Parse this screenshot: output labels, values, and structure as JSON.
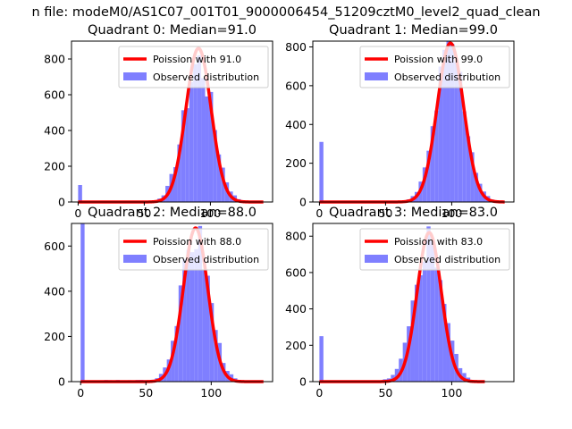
{
  "figure_title": "n file: modeM0/AS1C07_001T01_9000006454_51209cztM0_level2_quad_clean",
  "colors": {
    "poisson": "#ff0000",
    "hist": "#7f7fff",
    "axis": "#000000"
  },
  "chart_data": [
    {
      "type": "bar",
      "title": "Quadrant 0: Median=91.0",
      "median": 91.0,
      "xlim": [
        -5,
        147
      ],
      "ylim": [
        0,
        900
      ],
      "xticks": [
        0,
        50,
        100
      ],
      "yticks": [
        0,
        200,
        400,
        600,
        800
      ],
      "legend": {
        "placement": "top-right",
        "entries": [
          "Poission with 91.0",
          "Observed distribution"
        ]
      },
      "hist_bins": {
        "start": 0,
        "width": 3
      },
      "hist_values": [
        95,
        0,
        0,
        0,
        0,
        0,
        0,
        0,
        0,
        0,
        0,
        0,
        0,
        0,
        0,
        0,
        0,
        0,
        0,
        0,
        0,
        0,
        0,
        0,
        0,
        0,
        0,
        5,
        10,
        15,
        20,
        35,
        45,
        60,
        80,
        110,
        140,
        160,
        200,
        230,
        290,
        330,
        380,
        440,
        500,
        560,
        600,
        680,
        720,
        760,
        810,
        790,
        740,
        690,
        600,
        510,
        420,
        340,
        260,
        200,
        150,
        110,
        80,
        50,
        35,
        20,
        10,
        5,
        3,
        2,
        1,
        0,
        0,
        0,
        0,
        0,
        0,
        0,
        0,
        0,
        0,
        0,
        0,
        0,
        0,
        0,
        0,
        0,
        0,
        0,
        0,
        0,
        0,
        0,
        0,
        0,
        0,
        0,
        0,
        0,
        0,
        0,
        0,
        0,
        0,
        0,
        0,
        0,
        0,
        0,
        0,
        0,
        0,
        0,
        0,
        0,
        0,
        0,
        0,
        0,
        0,
        0,
        0,
        0,
        0,
        0,
        0,
        0,
        0,
        0,
        0,
        0,
        0,
        0,
        0,
        0,
        0,
        0,
        0,
        0,
        0,
        0,
        0,
        0,
        0,
        0,
        0,
        0,
        0,
        0,
        0,
        0,
        0,
        0,
        0,
        0,
        0,
        0
      ],
      "hist_values_note": "",
      "poisson": {
        "mu": 91.0,
        "x_range": [
          0,
          140
        ],
        "peak": 860
      }
    },
    {
      "type": "bar",
      "title": "Quadrant 1: Median=99.0",
      "median": 99.0,
      "xlim": [
        -5,
        147
      ],
      "ylim": [
        0,
        830
      ],
      "xticks": [
        0,
        50,
        100
      ],
      "yticks": [
        0,
        200,
        400,
        600,
        800
      ],
      "legend": {
        "placement": "top-right",
        "entries": [
          "Poission with 99.0",
          "Observed distribution"
        ]
      },
      "hist_bins": {
        "start": 0,
        "width": 3
      },
      "hist_values": [
        310,
        0,
        0,
        0,
        0,
        0,
        0,
        0,
        0,
        0,
        0,
        0,
        0,
        0,
        0,
        0,
        0,
        0,
        0,
        0,
        0,
        0,
        0,
        0,
        0,
        0,
        0,
        0,
        0,
        0,
        0,
        0,
        0,
        0,
        0,
        0,
        0,
        0,
        0,
        0,
        0,
        0,
        0,
        0,
        0,
        0,
        0,
        0,
        0,
        0,
        0,
        0,
        0,
        0,
        0,
        0,
        0,
        0,
        0,
        0,
        0,
        0,
        0,
        0,
        0,
        0,
        0,
        0,
        0,
        0,
        0,
        0,
        0,
        0,
        0,
        0,
        0,
        0,
        0,
        0,
        0,
        0,
        0,
        0,
        0,
        0,
        0,
        0,
        0,
        0,
        0,
        0,
        0,
        0,
        0,
        0,
        0,
        0,
        0,
        0,
        0,
        0,
        0,
        0,
        0,
        0,
        0,
        0,
        0,
        0,
        0,
        0,
        0,
        0,
        0,
        0,
        0,
        0,
        0,
        0,
        0,
        0,
        0,
        0,
        0,
        0,
        0,
        0,
        0,
        0,
        0,
        0,
        0,
        0,
        0,
        0,
        0,
        0,
        0,
        0,
        0,
        0,
        0,
        0,
        0,
        0,
        0,
        0,
        0,
        0
      ],
      "poisson": {
        "mu": 99.0,
        "x_range": [
          0,
          140
        ],
        "peak": 820
      }
    },
    {
      "type": "bar",
      "title": "Quadrant 2: Median=88.0",
      "median": 88.0,
      "xlim": [
        -7,
        147
      ],
      "ylim": [
        0,
        700
      ],
      "xticks": [
        0,
        50,
        100
      ],
      "yticks": [
        0,
        200,
        400,
        600
      ],
      "legend": {
        "placement": "top-right",
        "entries": [
          "Poission with 88.0",
          "Observed distribution"
        ]
      },
      "poisson": {
        "mu": 88.0,
        "x_range": [
          0,
          140
        ],
        "peak": 680
      }
    },
    {
      "type": "bar",
      "title": "Quadrant 3: Median=83.0",
      "median": 83.0,
      "xlim": [
        -5,
        147
      ],
      "ylim": [
        0,
        870
      ],
      "xticks": [
        0,
        50,
        100
      ],
      "yticks": [
        0,
        200,
        400,
        600,
        800
      ],
      "legend": {
        "placement": "top-right",
        "entries": [
          "Poission with 83.0",
          "Observed distribution"
        ]
      },
      "poisson": {
        "mu": 83.0,
        "x_range": [
          0,
          125
        ],
        "peak": 820
      }
    }
  ]
}
